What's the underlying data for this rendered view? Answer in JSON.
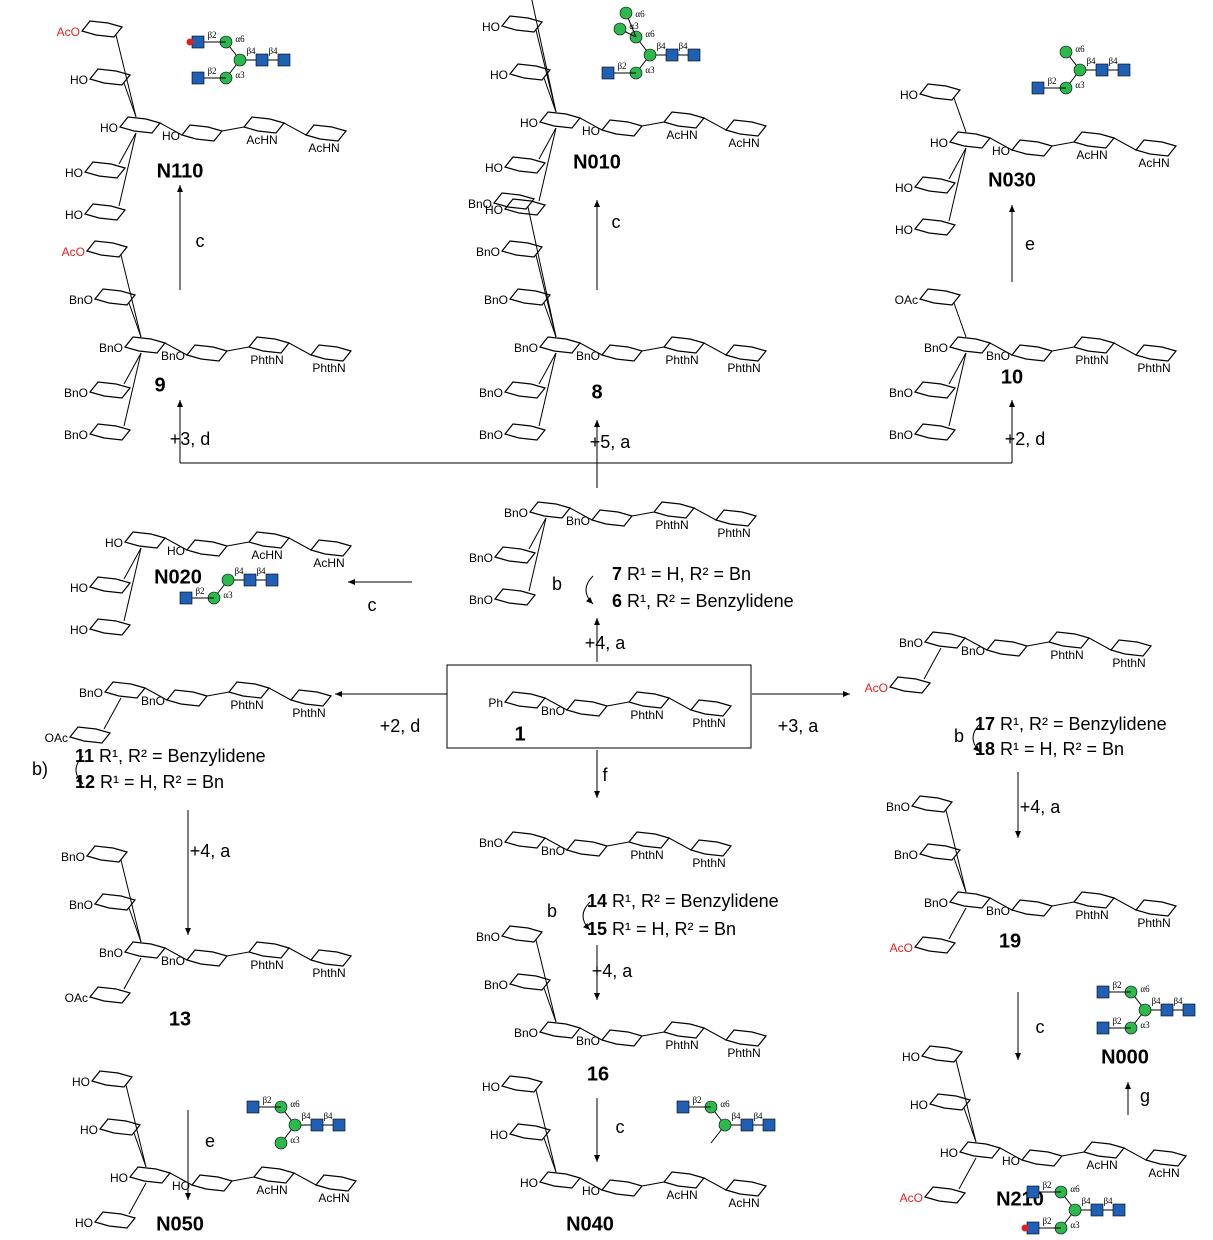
{
  "compounds": [
    {
      "label": "N110",
      "groups": [
        "HO",
        "HO",
        "AcHN",
        "AcHN",
        "HO",
        "AcO",
        "HO",
        "HO"
      ]
    },
    {
      "label": "N010",
      "groups": [
        "HO",
        "HO",
        "AcHN",
        "AcHN",
        "HO",
        "HO",
        "HO",
        "HO",
        "HO"
      ]
    },
    {
      "label": "N030",
      "groups": [
        "HO",
        "HO",
        "AcHN",
        "AcHN",
        "HO",
        "HO",
        "HO"
      ]
    },
    {
      "label": "9",
      "groups": [
        "BnO",
        "BnO",
        "PhthN",
        "PhthN",
        "BnO",
        "AcO",
        "BnO",
        "BnO"
      ]
    },
    {
      "label": "8",
      "groups": [
        "BnO",
        "BnO",
        "PhthN",
        "PhthN",
        "BnO",
        "BnO",
        "BnO",
        "BnO",
        "BnO"
      ]
    },
    {
      "label": "10",
      "groups": [
        "BnO",
        "BnO",
        "PhthN",
        "PhthN",
        "OAc",
        "BnO",
        "BnO"
      ]
    },
    {
      "label": "N020",
      "groups": [
        "HO",
        "HO",
        "AcHN",
        "AcHN",
        "HO",
        "HO"
      ]
    },
    {
      "label": "",
      "groups": [
        "BnO",
        "BnO",
        "PhthN",
        "PhthN",
        "BnO",
        "BnO"
      ]
    },
    {
      "label": "1",
      "groups": [
        "Ph",
        "BnO",
        "PhthN",
        "PhthN"
      ]
    },
    {
      "label": "",
      "groups": [
        "BnO",
        "BnO",
        "PhthN",
        "PhthN",
        "OAc"
      ]
    },
    {
      "label": "",
      "groups": [
        "BnO",
        "BnO",
        "PhthN",
        "PhthN"
      ]
    },
    {
      "label": "",
      "groups": [
        "BnO",
        "BnO",
        "PhthN",
        "PhthN",
        "AcO"
      ]
    },
    {
      "label": "13",
      "groups": [
        "BnO",
        "BnO",
        "PhthN",
        "PhthN",
        "BnO",
        "BnO",
        "OAc"
      ]
    },
    {
      "label": "16",
      "groups": [
        "BnO",
        "BnO",
        "PhthN",
        "PhthN",
        "BnO",
        "BnO"
      ]
    },
    {
      "label": "19",
      "groups": [
        "BnO",
        "BnO",
        "PhthN",
        "PhthN",
        "BnO",
        "BnO",
        "AcO"
      ]
    },
    {
      "label": "N050",
      "groups": [
        "HO",
        "HO",
        "AcHN",
        "AcHN",
        "HO",
        "HO",
        "HO"
      ]
    },
    {
      "label": "N040",
      "groups": [
        "HO",
        "HO",
        "AcHN",
        "AcHN",
        "HO",
        "HO"
      ]
    },
    {
      "label": "N210",
      "groups": [
        "HO",
        "HO",
        "AcHN",
        "AcHN",
        "HO",
        "HO",
        "AcO"
      ]
    }
  ],
  "standalone": [
    {
      "label": "N000"
    }
  ],
  "rgroups": [
    {
      "num": "7",
      "text": "R¹ = H, R² = Bn"
    },
    {
      "num": "6",
      "text": "R¹, R² = Benzylidene"
    },
    {
      "num": "11",
      "text": "R¹, R² = Benzylidene"
    },
    {
      "num": "12",
      "text": "R¹ = H, R² = Bn"
    },
    {
      "num": "14",
      "text": "R¹, R² = Benzylidene"
    },
    {
      "num": "15",
      "text": "R¹ = H, R² = Bn"
    },
    {
      "num": "17",
      "text": "R¹, R² = Benzylidene"
    },
    {
      "num": "18",
      "text": "R¹ = H, R² = Bn"
    }
  ],
  "reactions": [
    "c",
    "c",
    "e",
    "+3, d",
    "+5, a",
    "+2, d",
    "c",
    "+4, a",
    "b",
    "+2, d",
    "+3, a",
    "f",
    "b)",
    "+4, a",
    "e",
    "b",
    "+4, a",
    "c",
    "b",
    "+4, a",
    "c",
    "g"
  ],
  "glycans": [
    [
      "β4",
      "β4",
      "α6",
      "β2",
      "α3",
      "β2"
    ],
    [
      "β4",
      "β4",
      "α6",
      "α6",
      "α3",
      "α3",
      "β2"
    ],
    [
      "β4",
      "β4",
      "α6",
      "α3",
      "β2"
    ],
    [
      "β4",
      "β4",
      "α3",
      "β2"
    ],
    [
      "β4",
      "β4",
      "α6",
      "β2",
      "α3"
    ],
    [
      "β4",
      "β4",
      "α6",
      "β2"
    ],
    [
      "β4",
      "β4",
      "α6",
      "β2",
      "α3",
      "β2"
    ],
    [
      "β4",
      "β4",
      "α6",
      "β2",
      "α3",
      "β2"
    ]
  ]
}
